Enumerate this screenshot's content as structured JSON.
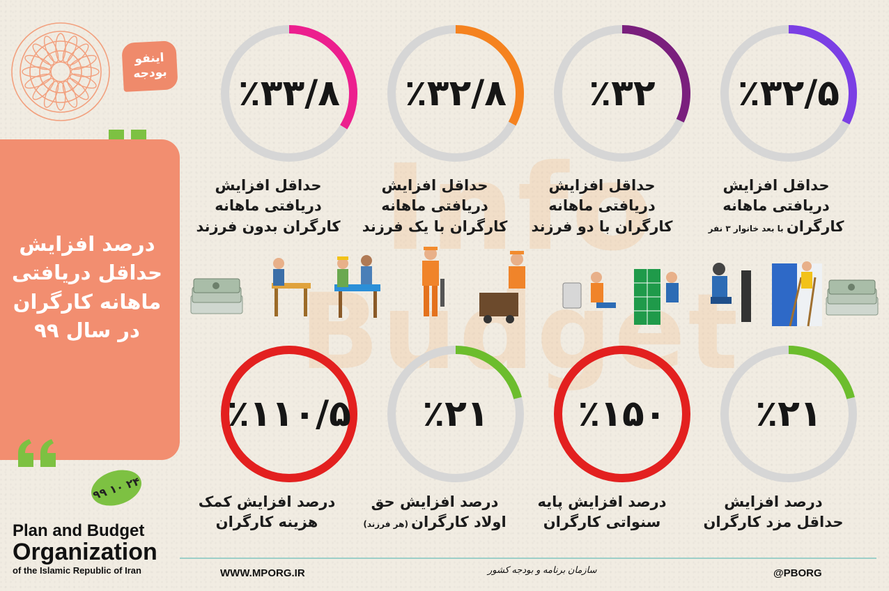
{
  "branding": {
    "badge_line1": "اینفو",
    "badge_line2": "بودجه",
    "watermark_line1": "Info",
    "watermark_line2": "Budget",
    "date_badge": "۹۹ ۱۰ ۲۴"
  },
  "title": {
    "lines": [
      "درصد افزایش",
      "حداقل دریافتی",
      "ماهانه کارگران",
      "در سال ۹۹"
    ]
  },
  "stats": [
    {
      "percent": 33.8,
      "label": "٪۳۳/۸",
      "ring_color": "#ec1f8e",
      "caption": [
        "حداقل افزایش",
        "دریافتی ماهانه",
        "کارگران بدون فرزند"
      ],
      "caption_small": ""
    },
    {
      "percent": 32.8,
      "label": "٪۳۲/۸",
      "ring_color": "#f5821f",
      "caption": [
        "حداقل افزایش",
        "دریافتی ماهانه",
        "کارگران با یک فرزند"
      ],
      "caption_small": ""
    },
    {
      "percent": 32,
      "label": "٪۳۲",
      "ring_color": "#7a1f7d",
      "caption": [
        "حداقل افزایش",
        "دریافتی ماهانه",
        "کارگران با دو فرزند"
      ],
      "caption_small": ""
    },
    {
      "percent": 32.5,
      "label": "٪۳۲/۵",
      "ring_color": "#7b3fe4",
      "caption": [
        "حداقل افزایش",
        "دریافتی ماهانه",
        "کارگران"
      ],
      "caption_small": "با بعد خانوار ۳ نفر"
    },
    {
      "percent": 110.5,
      "label": "٪۱۱۰/۵",
      "ring_color": "#e3201f",
      "caption": [
        "درصد افزایش کمک",
        "هزینه کارگران"
      ],
      "caption_small": ""
    },
    {
      "percent": 21,
      "label": "٪۲۱",
      "ring_color": "#6cbd2d",
      "caption": [
        "درصد افزایش حق",
        "اولاد کارگران"
      ],
      "caption_small": "(هر فرزند)"
    },
    {
      "percent": 150,
      "label": "٪۱۵۰",
      "ring_color": "#e3201f",
      "caption": [
        "درصد افزایش پایه",
        "سنواتی کارگران"
      ],
      "caption_small": ""
    },
    {
      "percent": 21,
      "label": "٪۲۱",
      "ring_color": "#6cbd2d",
      "caption": [
        "درصد افزایش",
        "حداقل مزد کارگران"
      ],
      "caption_small": ""
    }
  ],
  "organization": {
    "line1": "Plan and Budget",
    "line2": "Organization",
    "line3": "of the Islamic Republic of Iran"
  },
  "footer": {
    "website": "WWW.MPORG.IR",
    "center_text": "سازمان برنامه و بودجه کشور",
    "social": "@PBORG"
  },
  "colors": {
    "background": "#f1ece2",
    "title_card": "#f28e70",
    "ring_track": "#d6d6d6",
    "quote_green": "#7dc142"
  }
}
